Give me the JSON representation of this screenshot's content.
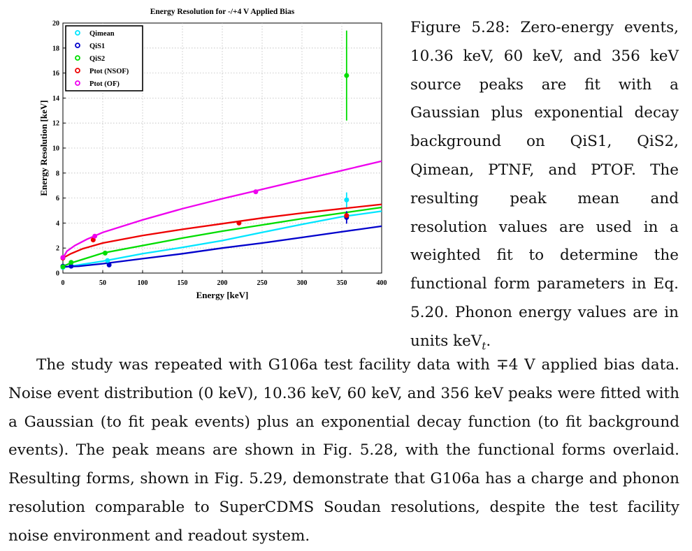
{
  "figure": {
    "caption_label": "Figure 5.28:",
    "caption_text": "Zero-energy events, 10.36 keV, 60 keV, and 356 keV source peaks are fit with a Gaussian plus exponential decay background on QiS1, QiS2, Qimean, PTNF, and PTOF. The resulting peak mean and resolution values are used in a weighted fit to determine the functional form parameters in Eq. 5.20. Phonon energy values are in units keV",
    "caption_subscript": "t",
    "caption_end": "."
  },
  "body": {
    "paragraph": "The study was repeated with G106a test facility data with ∓4 V applied bias data. Noise event distribution (0 keV), 10.36 keV, 60 keV, and 356 keV peaks were fitted with a Gaussian (to fit peak events) plus an exponential decay function (to fit background events). The peak means are shown in Fig. 5.28, with the functional forms overlaid. Resulting forms, shown in Fig. 5.29, demonstrate that G106a has a charge and phonon resolution comparable to SuperCDMS Soudan resolutions, despite the test facility noise environment and readout system."
  },
  "chart_data": {
    "type": "scatter",
    "title": "Energy Resolution for -/+4 V Applied Bias",
    "xlabel": "Energy [keV]",
    "ylabel": "Energy Resolution [keV]",
    "xlim": [
      0,
      400
    ],
    "ylim": [
      0,
      20
    ],
    "xticks": [
      0,
      50,
      100,
      150,
      200,
      250,
      300,
      350,
      400
    ],
    "yticks": [
      0,
      2,
      4,
      6,
      8,
      10,
      12,
      14,
      16,
      18,
      20
    ],
    "grid": true,
    "legend_position": "top-left",
    "series": [
      {
        "name": "Qimean",
        "color": "#00e5ff",
        "points": [
          {
            "x": 0,
            "y": 0.45
          },
          {
            "x": 10.36,
            "y": 0.55
          },
          {
            "x": 56,
            "y": 1.0
          },
          {
            "x": 356,
            "y": 5.85,
            "yerr": 0.6
          }
        ],
        "fit": [
          [
            0,
            0.45
          ],
          [
            50,
            0.95
          ],
          [
            100,
            1.55
          ],
          [
            150,
            2.05
          ],
          [
            200,
            2.6
          ],
          [
            250,
            3.25
          ],
          [
            300,
            3.9
          ],
          [
            350,
            4.5
          ],
          [
            400,
            4.95
          ]
        ]
      },
      {
        "name": "QiS1",
        "color": "#0000cc",
        "points": [
          {
            "x": 0,
            "y": 0.55
          },
          {
            "x": 10.36,
            "y": 0.55
          },
          {
            "x": 58,
            "y": 0.65
          },
          {
            "x": 356,
            "y": 4.45,
            "yerr": 0.5
          }
        ],
        "fit": [
          [
            0,
            0.5
          ],
          [
            20,
            0.55
          ],
          [
            50,
            0.75
          ],
          [
            100,
            1.15
          ],
          [
            150,
            1.55
          ],
          [
            200,
            2.0
          ],
          [
            250,
            2.4
          ],
          [
            300,
            2.85
          ],
          [
            350,
            3.3
          ],
          [
            400,
            3.75
          ]
        ]
      },
      {
        "name": "QiS2",
        "color": "#00dd00",
        "points": [
          {
            "x": 0,
            "y": 0.5
          },
          {
            "x": 10.36,
            "y": 0.85
          },
          {
            "x": 53,
            "y": 1.6
          },
          {
            "x": 356,
            "y": 15.8,
            "yerr": 3.6
          }
        ],
        "fit": [
          [
            0,
            0.55
          ],
          [
            10,
            0.8
          ],
          [
            50,
            1.6
          ],
          [
            100,
            2.2
          ],
          [
            150,
            2.8
          ],
          [
            200,
            3.35
          ],
          [
            250,
            3.85
          ],
          [
            300,
            4.35
          ],
          [
            350,
            4.8
          ],
          [
            400,
            5.25
          ]
        ]
      },
      {
        "name": "Ptot (NSOF)",
        "color": "#ee0000",
        "points": [
          {
            "x": 0,
            "y": 1.2
          },
          {
            "x": 38,
            "y": 2.65
          },
          {
            "x": 221,
            "y": 4.0
          },
          {
            "x": 356,
            "y": 4.6
          }
        ],
        "fit": [
          [
            0,
            1.2
          ],
          [
            10,
            1.55
          ],
          [
            25,
            1.95
          ],
          [
            50,
            2.4
          ],
          [
            100,
            3.0
          ],
          [
            150,
            3.5
          ],
          [
            200,
            3.95
          ],
          [
            250,
            4.4
          ],
          [
            300,
            4.8
          ],
          [
            350,
            5.15
          ],
          [
            400,
            5.5
          ]
        ]
      },
      {
        "name": "Ptot (OF)",
        "color": "#ee00ee",
        "points": [
          {
            "x": 0,
            "y": 1.25
          },
          {
            "x": 40,
            "y": 2.95
          },
          {
            "x": 242,
            "y": 6.5
          }
        ],
        "fit": [
          [
            0,
            1.2
          ],
          [
            5,
            1.75
          ],
          [
            15,
            2.2
          ],
          [
            30,
            2.7
          ],
          [
            50,
            3.25
          ],
          [
            100,
            4.25
          ],
          [
            150,
            5.15
          ],
          [
            200,
            5.95
          ],
          [
            250,
            6.7
          ],
          [
            300,
            7.45
          ],
          [
            350,
            8.2
          ],
          [
            400,
            8.95
          ]
        ]
      }
    ]
  }
}
